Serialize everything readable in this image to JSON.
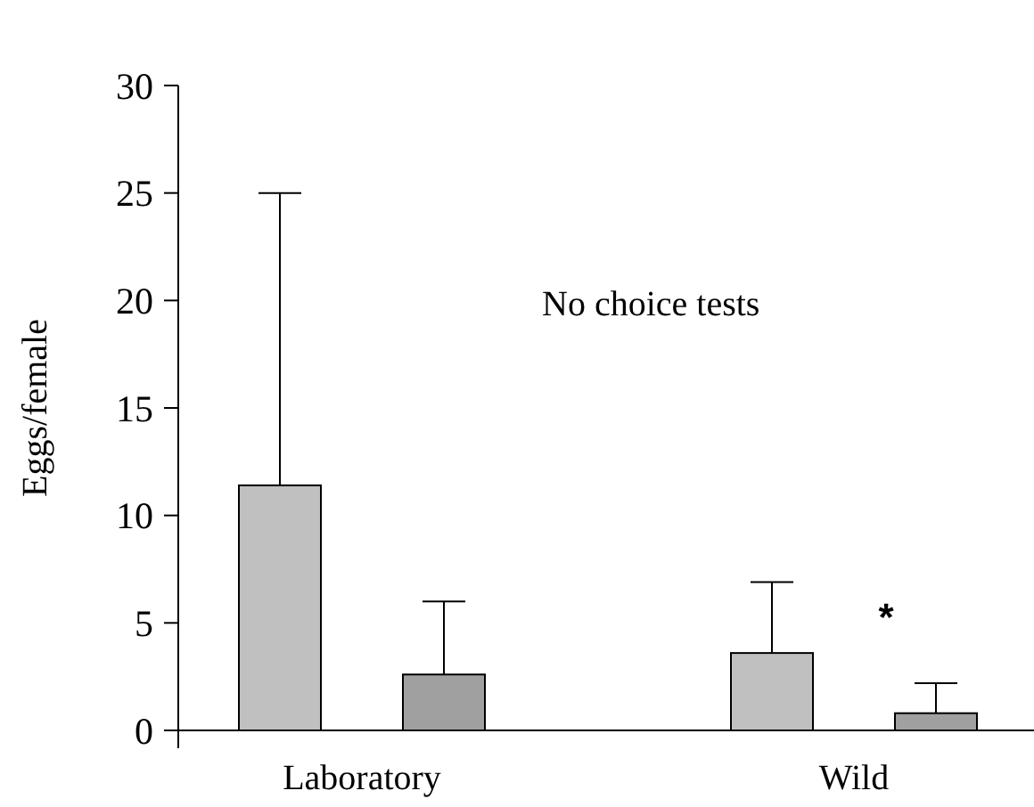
{
  "chart_data": {
    "type": "bar",
    "ylabel": "Eggs/female",
    "categories": [
      "Laboratory",
      "Wild"
    ],
    "series": [
      {
        "color": "#c0c0c0",
        "values": [
          11.4,
          3.6
        ],
        "errors": [
          [
            11.4,
            25
          ],
          [
            3.6,
            6.9
          ]
        ]
      },
      {
        "color": "#a0a0a0",
        "values": [
          2.6,
          0.8
        ],
        "errors": [
          [
            2.6,
            6.0
          ],
          [
            0.8,
            2.2
          ]
        ]
      }
    ],
    "ylim": [
      0,
      30
    ],
    "yticks": [
      0,
      5,
      10,
      15,
      20,
      25,
      30
    ],
    "annotations": [
      "No choice tests",
      "*"
    ],
    "grid": false
  }
}
